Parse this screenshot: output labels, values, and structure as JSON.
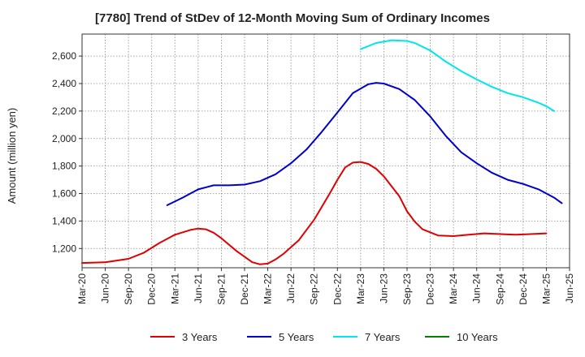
{
  "chart_data": {
    "type": "line",
    "title": "[7780]  Trend of StDev of 12-Month Moving Sum of Ordinary Incomes",
    "ylabel": "Amount (million yen)",
    "xlabel": "",
    "ylim": [
      1060,
      2760
    ],
    "yticks": [
      1200,
      1400,
      1600,
      1800,
      2000,
      2200,
      2400,
      2600
    ],
    "ytick_labels": [
      "1,200",
      "1,400",
      "1,600",
      "1,800",
      "2,000",
      "2,200",
      "2,400",
      "2,600"
    ],
    "xticks": [
      "Mar-20",
      "Jun-20",
      "Sep-20",
      "Dec-20",
      "Mar-21",
      "Jun-21",
      "Sep-21",
      "Dec-21",
      "Mar-22",
      "Jun-22",
      "Sep-22",
      "Dec-22",
      "Mar-23",
      "Jun-23",
      "Sep-23",
      "Dec-23",
      "Mar-24",
      "Jun-24",
      "Sep-24",
      "Dec-24",
      "Mar-25",
      "Jun-25"
    ],
    "grid": true,
    "legend_position": "bottom",
    "series": [
      {
        "name": "3 Years",
        "color": "#e00000",
        "points": [
          [
            "Mar-20",
            1095
          ],
          [
            "Jun-20",
            1100
          ],
          [
            "Sep-20",
            1125
          ],
          [
            "Nov-20",
            1170
          ],
          [
            "Jan-21",
            1240
          ],
          [
            "Mar-21",
            1300
          ],
          [
            "May-21",
            1335
          ],
          [
            "Jun-21",
            1345
          ],
          [
            "Jul-21",
            1340
          ],
          [
            "Aug-21",
            1315
          ],
          [
            "Sep-21",
            1275
          ],
          [
            "Nov-21",
            1180
          ],
          [
            "Jan-22",
            1100
          ],
          [
            "Feb-22",
            1085
          ],
          [
            "Mar-22",
            1090
          ],
          [
            "Apr-22",
            1120
          ],
          [
            "May-22",
            1160
          ],
          [
            "Jul-22",
            1260
          ],
          [
            "Sep-22",
            1410
          ],
          [
            "Nov-22",
            1600
          ],
          [
            "Dec-22",
            1700
          ],
          [
            "Jan-23",
            1790
          ],
          [
            "Feb-23",
            1825
          ],
          [
            "Mar-23",
            1830
          ],
          [
            "Apr-23",
            1815
          ],
          [
            "May-23",
            1780
          ],
          [
            "Jun-23",
            1725
          ],
          [
            "Aug-23",
            1580
          ],
          [
            "Sep-23",
            1470
          ],
          [
            "Oct-23",
            1395
          ],
          [
            "Nov-23",
            1340
          ],
          [
            "Jan-24",
            1295
          ],
          [
            "Mar-24",
            1290
          ],
          [
            "May-24",
            1300
          ],
          [
            "Jul-24",
            1310
          ],
          [
            "Sep-24",
            1305
          ],
          [
            "Nov-24",
            1300
          ],
          [
            "Jan-25",
            1305
          ],
          [
            "Mar-25",
            1310
          ]
        ]
      },
      {
        "name": "5 Years",
        "color": "#0000cc",
        "points": [
          [
            "Feb-21",
            1515
          ],
          [
            "Apr-21",
            1570
          ],
          [
            "Jun-21",
            1630
          ],
          [
            "Aug-21",
            1660
          ],
          [
            "Oct-21",
            1660
          ],
          [
            "Dec-21",
            1665
          ],
          [
            "Feb-22",
            1690
          ],
          [
            "Apr-22",
            1740
          ],
          [
            "Jun-22",
            1820
          ],
          [
            "Aug-22",
            1920
          ],
          [
            "Oct-22",
            2050
          ],
          [
            "Dec-22",
            2190
          ],
          [
            "Feb-23",
            2330
          ],
          [
            "Apr-23",
            2395
          ],
          [
            "May-23",
            2405
          ],
          [
            "Jun-23",
            2400
          ],
          [
            "Aug-23",
            2360
          ],
          [
            "Oct-23",
            2280
          ],
          [
            "Dec-23",
            2160
          ],
          [
            "Feb-24",
            2020
          ],
          [
            "Apr-24",
            1900
          ],
          [
            "Jun-24",
            1820
          ],
          [
            "Aug-24",
            1750
          ],
          [
            "Oct-24",
            1700
          ],
          [
            "Dec-24",
            1670
          ],
          [
            "Feb-25",
            1630
          ],
          [
            "Apr-25",
            1570
          ],
          [
            "May-25",
            1530
          ]
        ]
      },
      {
        "name": "7 Years",
        "color": "#00e5ee",
        "points": [
          [
            "Mar-23",
            2650
          ],
          [
            "May-23",
            2695
          ],
          [
            "Jul-23",
            2715
          ],
          [
            "Sep-23",
            2710
          ],
          [
            "Oct-23",
            2695
          ],
          [
            "Dec-23",
            2640
          ],
          [
            "Feb-24",
            2560
          ],
          [
            "Apr-24",
            2490
          ],
          [
            "Jun-24",
            2430
          ],
          [
            "Aug-24",
            2375
          ],
          [
            "Oct-24",
            2330
          ],
          [
            "Dec-24",
            2300
          ],
          [
            "Feb-25",
            2260
          ],
          [
            "Mar-25",
            2235
          ],
          [
            "Apr-25",
            2200
          ]
        ]
      },
      {
        "name": "10 Years",
        "color": "#008000",
        "points": []
      }
    ]
  }
}
